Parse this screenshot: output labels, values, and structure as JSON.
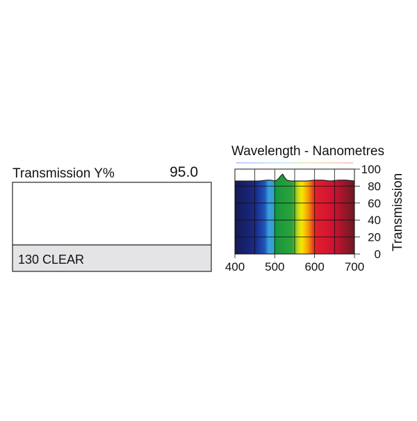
{
  "swatch": {
    "label": "Transmission Y%",
    "value": "95.0",
    "name": "130 CLEAR"
  },
  "chart_data": {
    "type": "area",
    "title": "Wavelength - Nanometres",
    "y_label": "Transmission",
    "x": [
      400,
      420,
      440,
      460,
      480,
      490,
      500,
      505,
      510,
      515,
      520,
      525,
      530,
      540,
      560,
      580,
      600,
      620,
      640,
      660,
      680,
      700
    ],
    "values": [
      86,
      86,
      86,
      86,
      87,
      87,
      86,
      87,
      89,
      92,
      94,
      90,
      87,
      86,
      86,
      86,
      87,
      87,
      86,
      87,
      87,
      86
    ],
    "color": "#222222",
    "xlim": [
      400,
      700
    ],
    "xticks": [
      400,
      500,
      600,
      700
    ],
    "minor_xticks": [
      450,
      550,
      650
    ],
    "ylim": [
      0,
      100
    ],
    "yticks": [
      0,
      20,
      40,
      60,
      80,
      100
    ],
    "grid": true
  }
}
